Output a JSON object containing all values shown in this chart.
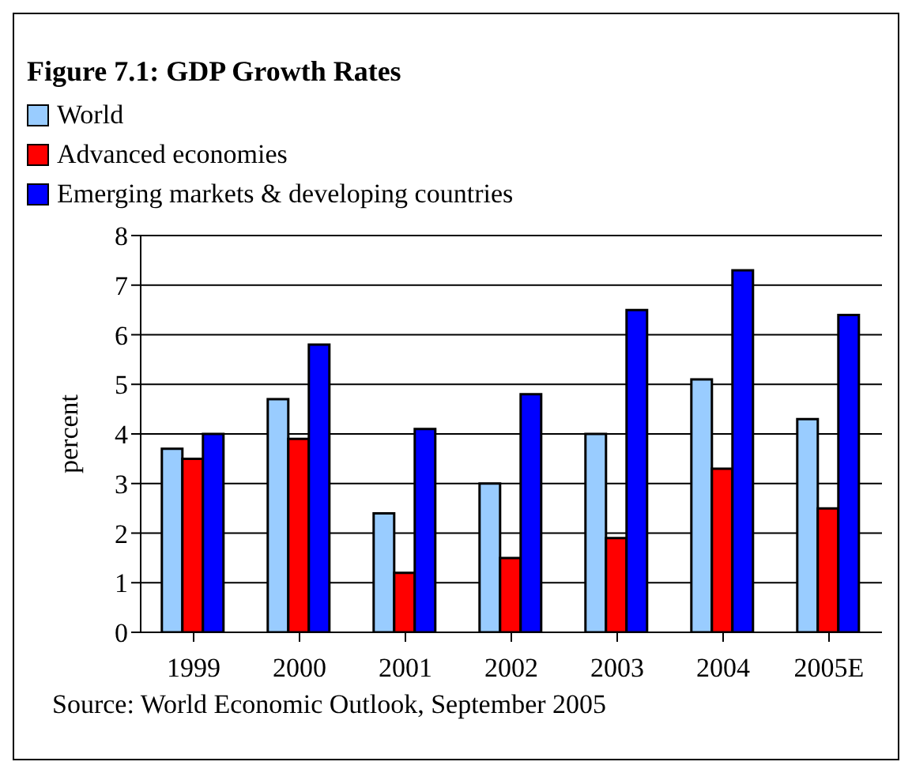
{
  "chart_data": {
    "type": "bar",
    "title": "Figure 7.1: GDP Growth Rates",
    "ylabel": "percent",
    "categories": [
      "1999",
      "2000",
      "2001",
      "2002",
      "2003",
      "2004",
      "2005E"
    ],
    "series": [
      {
        "name": "World",
        "color": "#99ccff",
        "values": [
          3.7,
          4.7,
          2.4,
          3.0,
          4.0,
          5.1,
          4.3
        ]
      },
      {
        "name": "Advanced economies",
        "color": "#ff0000",
        "values": [
          3.5,
          3.9,
          1.2,
          1.5,
          1.9,
          3.3,
          2.5
        ]
      },
      {
        "name": "Emerging markets & developing countries",
        "color": "#0000ff",
        "values": [
          4.0,
          5.8,
          4.1,
          4.8,
          6.5,
          7.3,
          6.4
        ]
      }
    ],
    "ylim": [
      0,
      8
    ],
    "yticks": [
      0,
      1,
      2,
      3,
      4,
      5,
      6,
      7,
      8
    ],
    "grid": "y",
    "legend": "top left",
    "annotations": [
      "Source: World Economic Outlook, September 2005"
    ]
  }
}
